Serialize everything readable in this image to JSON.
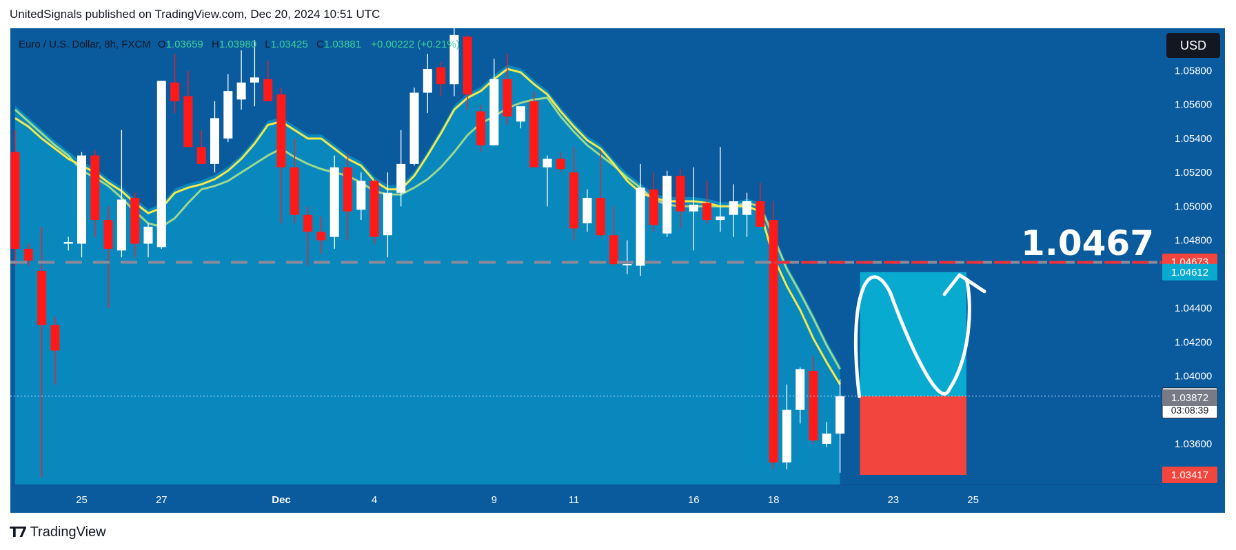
{
  "header": {
    "published_line": "UnitedSignals published on TradingView.com, Dec 20, 2024 10:51 UTC"
  },
  "legend": {
    "symbol": "Euro / U.S. Dollar, 8h, FXCM",
    "o_label": "O",
    "o_value": "1.03659",
    "h_label": "H",
    "h_value": "1.03980",
    "l_label": "L",
    "l_value": "1.03425",
    "c_label": "C",
    "c_value": "1.03881",
    "change": "+0.00222 (+0.21%)"
  },
  "currency_button": "USD",
  "brand": {
    "name": "TradingView"
  },
  "annotation_price": "1.0467",
  "colors": {
    "background": "#0a5a9e",
    "area": "#0a8bc0",
    "ema_fast": "#f5e94a",
    "ema_slow": "#9cd98c",
    "bull": "#ffffff",
    "bear": "#ff1a1a",
    "target_zone": "#08aad0",
    "stop_zone": "#f2453d",
    "resistance_line": "#e8323c"
  },
  "chart_data": {
    "type": "candlestick",
    "timeframe": "8h",
    "y_range": [
      1.0336,
      1.0605
    ],
    "y_ticks": [
      "1.05800",
      "1.05600",
      "1.05400",
      "1.05200",
      "1.05000",
      "1.04800",
      "1.04400",
      "1.04200",
      "1.04000",
      "1.03600"
    ],
    "x_labels": [
      {
        "label": "25",
        "bar": 5
      },
      {
        "label": "27",
        "bar": 11
      },
      {
        "label": "Dec",
        "bar": 20
      },
      {
        "label": "4",
        "bar": 27
      },
      {
        "label": "9",
        "bar": 36
      },
      {
        "label": "11",
        "bar": 42
      },
      {
        "label": "16",
        "bar": 51
      },
      {
        "label": "18",
        "bar": 57
      },
      {
        "label": "23",
        "bar": 66
      },
      {
        "label": "25",
        "bar": 72
      }
    ],
    "price_badges": [
      {
        "value": "1.04673",
        "kind": "resistance",
        "color": "#f2453d"
      },
      {
        "value": "1.04612",
        "kind": "target",
        "color": "#08aad0"
      },
      {
        "value": "1.03881",
        "kind": "last",
        "color": "#ffffff",
        "countdown": "03:08:39"
      },
      {
        "value": "1.03872",
        "kind": "ema",
        "color": "#787b86"
      },
      {
        "value": "1.03417",
        "kind": "stop",
        "color": "#f2453d"
      }
    ],
    "resistance_level": 1.0467,
    "last_price": 1.03881,
    "position": {
      "entry": 1.0388,
      "target": 1.04612,
      "stop": 1.03417,
      "start_bar": 63.5,
      "end_bar": 71.5
    },
    "candles": [
      {
        "o": 1.0532,
        "h": 1.0545,
        "l": 1.0465,
        "c": 1.0475
      },
      {
        "o": 1.0475,
        "h": 1.0478,
        "l": 1.0465,
        "c": 1.0468
      },
      {
        "o": 1.0462,
        "h": 1.0488,
        "l": 1.034,
        "c": 1.043
      },
      {
        "o": 1.043,
        "h": 1.0435,
        "l": 1.0395,
        "c": 1.0415
      },
      {
        "o": 1.0478,
        "h": 1.0482,
        "l": 1.0474,
        "c": 1.0479
      },
      {
        "o": 1.0478,
        "h": 1.0532,
        "l": 1.047,
        "c": 1.053
      },
      {
        "o": 1.053,
        "h": 1.0533,
        "l": 1.0482,
        "c": 1.0492
      },
      {
        "o": 1.0492,
        "h": 1.05,
        "l": 1.044,
        "c": 1.0475
      },
      {
        "o": 1.0474,
        "h": 1.0545,
        "l": 1.047,
        "c": 1.0504
      },
      {
        "o": 1.0505,
        "h": 1.0508,
        "l": 1.047,
        "c": 1.0478
      },
      {
        "o": 1.0478,
        "h": 1.049,
        "l": 1.047,
        "c": 1.0488
      },
      {
        "o": 1.0476,
        "h": 1.0574,
        "l": 1.0475,
        "c": 1.0574
      },
      {
        "o": 1.0573,
        "h": 1.059,
        "l": 1.0555,
        "c": 1.0562
      },
      {
        "o": 1.0565,
        "h": 1.058,
        "l": 1.0535,
        "c": 1.0535
      },
      {
        "o": 1.0535,
        "h": 1.0545,
        "l": 1.0525,
        "c": 1.0525
      },
      {
        "o": 1.0525,
        "h": 1.0562,
        "l": 1.052,
        "c": 1.0552
      },
      {
        "o": 1.054,
        "h": 1.0578,
        "l": 1.0538,
        "c": 1.0568
      },
      {
        "o": 1.0563,
        "h": 1.0592,
        "l": 1.0557,
        "c": 1.0573
      },
      {
        "o": 1.0573,
        "h": 1.0598,
        "l": 1.0559,
        "c": 1.0576
      },
      {
        "o": 1.0575,
        "h": 1.0586,
        "l": 1.0562,
        "c": 1.0562
      },
      {
        "o": 1.0566,
        "h": 1.057,
        "l": 1.049,
        "c": 1.0523
      },
      {
        "o": 1.0523,
        "h": 1.054,
        "l": 1.049,
        "c": 1.0495
      },
      {
        "o": 1.0495,
        "h": 1.05,
        "l": 1.0465,
        "c": 1.0485
      },
      {
        "o": 1.0485,
        "h": 1.0494,
        "l": 1.0472,
        "c": 1.048
      },
      {
        "o": 1.0482,
        "h": 1.053,
        "l": 1.0475,
        "c": 1.0523
      },
      {
        "o": 1.0523,
        "h": 1.0531,
        "l": 1.048,
        "c": 1.0497
      },
      {
        "o": 1.0498,
        "h": 1.052,
        "l": 1.0492,
        "c": 1.0515
      },
      {
        "o": 1.0515,
        "h": 1.0516,
        "l": 1.0478,
        "c": 1.0482
      },
      {
        "o": 1.0483,
        "h": 1.052,
        "l": 1.047,
        "c": 1.0508
      },
      {
        "o": 1.0508,
        "h": 1.0545,
        "l": 1.05,
        "c": 1.0525
      },
      {
        "o": 1.0525,
        "h": 1.057,
        "l": 1.0524,
        "c": 1.0567
      },
      {
        "o": 1.0567,
        "h": 1.059,
        "l": 1.0555,
        "c": 1.0581
      },
      {
        "o": 1.0582,
        "h": 1.0585,
        "l": 1.0565,
        "c": 1.0572
      },
      {
        "o": 1.0572,
        "h": 1.0605,
        "l": 1.0565,
        "c": 1.0601
      },
      {
        "o": 1.06,
        "h": 1.0601,
        "l": 1.0557,
        "c": 1.0566
      },
      {
        "o": 1.0556,
        "h": 1.056,
        "l": 1.0532,
        "c": 1.0536
      },
      {
        "o": 1.0536,
        "h": 1.0587,
        "l": 1.0536,
        "c": 1.0575
      },
      {
        "o": 1.0575,
        "h": 1.059,
        "l": 1.0548,
        "c": 1.0553
      },
      {
        "o": 1.055,
        "h": 1.0559,
        "l": 1.0546,
        "c": 1.0559
      },
      {
        "o": 1.0562,
        "h": 1.0568,
        "l": 1.0523,
        "c": 1.0523
      },
      {
        "o": 1.0523,
        "h": 1.053,
        "l": 1.05,
        "c": 1.0528
      },
      {
        "o": 1.0528,
        "h": 1.0532,
        "l": 1.052,
        "c": 1.0522
      },
      {
        "o": 1.052,
        "h": 1.0535,
        "l": 1.048,
        "c": 1.0487
      },
      {
        "o": 1.049,
        "h": 1.051,
        "l": 1.0485,
        "c": 1.0505
      },
      {
        "o": 1.0505,
        "h": 1.0533,
        "l": 1.0482,
        "c": 1.0483
      },
      {
        "o": 1.0483,
        "h": 1.05,
        "l": 1.0465,
        "c": 1.0466
      },
      {
        "o": 1.0466,
        "h": 1.048,
        "l": 1.046,
        "c": 1.0466
      },
      {
        "o": 1.0465,
        "h": 1.0525,
        "l": 1.0459,
        "c": 1.0511
      },
      {
        "o": 1.051,
        "h": 1.052,
        "l": 1.0485,
        "c": 1.0489
      },
      {
        "o": 1.0484,
        "h": 1.0521,
        "l": 1.0482,
        "c": 1.0518
      },
      {
        "o": 1.0518,
        "h": 1.0522,
        "l": 1.0487,
        "c": 1.0497
      },
      {
        "o": 1.0497,
        "h": 1.0523,
        "l": 1.0474,
        "c": 1.0501
      },
      {
        "o": 1.0502,
        "h": 1.0515,
        "l": 1.049,
        "c": 1.0492
      },
      {
        "o": 1.0492,
        "h": 1.0535,
        "l": 1.0485,
        "c": 1.0494
      },
      {
        "o": 1.0495,
        "h": 1.0513,
        "l": 1.0482,
        "c": 1.0503
      },
      {
        "o": 1.0495,
        "h": 1.0508,
        "l": 1.0482,
        "c": 1.0503
      },
      {
        "o": 1.0503,
        "h": 1.0514,
        "l": 1.0488,
        "c": 1.0488
      },
      {
        "o": 1.0492,
        "h": 1.0503,
        "l": 1.0345,
        "c": 1.0349
      },
      {
        "o": 1.0349,
        "h": 1.0395,
        "l": 1.0345,
        "c": 1.038
      },
      {
        "o": 1.038,
        "h": 1.0405,
        "l": 1.0372,
        "c": 1.0404
      },
      {
        "o": 1.0403,
        "h": 1.0412,
        "l": 1.036,
        "c": 1.0362
      },
      {
        "o": 1.036,
        "h": 1.0373,
        "l": 1.0358,
        "c": 1.0366
      },
      {
        "o": 1.0366,
        "h": 1.0398,
        "l": 1.0343,
        "c": 1.0388
      }
    ],
    "ema_fast": [
      1.0552,
      1.0547,
      1.054,
      1.0534,
      1.0528,
      1.0524,
      1.052,
      1.0514,
      1.0509,
      1.0502,
      1.0496,
      1.0499,
      1.0508,
      1.0511,
      1.0513,
      1.0516,
      1.0521,
      1.0528,
      1.0537,
      1.0548,
      1.055,
      1.0545,
      1.054,
      1.054,
      1.0534,
      1.0528,
      1.0524,
      1.0515,
      1.051,
      1.051,
      1.0518,
      1.053,
      1.0543,
      1.0557,
      1.0564,
      1.0568,
      1.0575,
      1.0581,
      1.0579,
      1.0572,
      1.0566,
      1.0556,
      1.0547,
      1.0539,
      1.0534,
      1.0525,
      1.0515,
      1.0508,
      1.0505,
      1.0503,
      1.0503,
      1.0503,
      1.0502,
      1.05,
      1.05,
      1.05,
      1.0497,
      1.047,
      1.0453,
      1.0439,
      1.0422,
      1.0408,
      1.0395
    ],
    "ema_slow": [
      1.0557,
      1.055,
      1.0543,
      1.0536,
      1.053,
      1.0521,
      1.0517,
      1.0512,
      1.0505,
      1.0497,
      1.049,
      1.0488,
      1.0493,
      1.0502,
      1.051,
      1.0512,
      1.0515,
      1.052,
      1.0525,
      1.053,
      1.0534,
      1.0529,
      1.0525,
      1.0522,
      1.052,
      1.0518,
      1.0514,
      1.0509,
      1.0507,
      1.0507,
      1.0511,
      1.0516,
      1.0523,
      1.0532,
      1.0542,
      1.0549,
      1.0553,
      1.0558,
      1.0561,
      1.0563,
      1.0564,
      1.0553,
      1.0544,
      1.0536,
      1.053,
      1.0524,
      1.0517,
      1.0511,
      1.0504,
      1.0501,
      1.05,
      1.05,
      1.05,
      1.05,
      1.05,
      1.0502,
      1.05,
      1.0482,
      1.0463,
      1.0449,
      1.0434,
      1.0418,
      1.0404
    ]
  }
}
